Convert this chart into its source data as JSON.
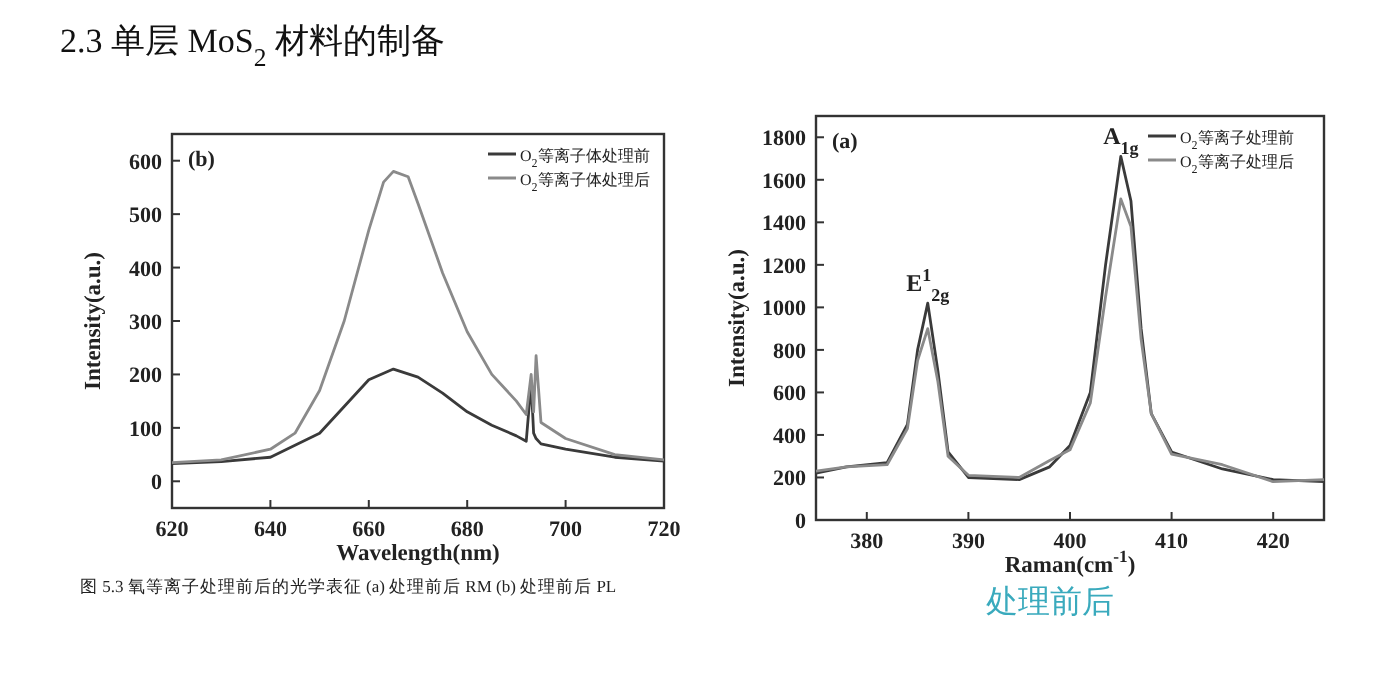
{
  "chart_data": [
    {
      "type": "line",
      "title": "(b)",
      "xlabel": "Wavelength(nm)",
      "ylabel": "Intensity(a.u.)",
      "xlim": [
        620,
        720
      ],
      "ylim": [
        -50,
        650
      ],
      "xticks": [
        620,
        640,
        660,
        680,
        700,
        720
      ],
      "yticks": [
        0,
        100,
        200,
        300,
        400,
        500,
        600
      ],
      "legend": "top right",
      "grid": false,
      "annotations": [
        "2.3  单层 MoS$_{2}$ 材料的制备",
        "图 5.3  氧等离子处理前后的光学表征  (a)  处理前后 RM (b)  处理前后 PL"
      ],
      "series": [
        {
          "name": "O$_{2}$等离子体处理前",
          "color": "#3a3a3a",
          "x": [
            620,
            630,
            640,
            650,
            655,
            660,
            665,
            670,
            675,
            680,
            685,
            690,
            692,
            693,
            693.5,
            694,
            695,
            700,
            710,
            720
          ],
          "values": [
            33,
            37,
            45,
            90,
            140,
            190,
            210,
            195,
            165,
            130,
            105,
            85,
            75,
            185,
            90,
            80,
            70,
            60,
            45,
            38
          ]
        },
        {
          "name": "O$_{2}$等离子体处理后",
          "color": "#8a8a8a",
          "x": [
            620,
            630,
            640,
            645,
            650,
            655,
            660,
            663,
            665,
            668,
            670,
            675,
            680,
            685,
            690,
            692,
            693,
            693.5,
            694,
            695,
            700,
            710,
            720
          ],
          "values": [
            35,
            40,
            60,
            90,
            170,
            300,
            470,
            560,
            580,
            570,
            520,
            390,
            280,
            200,
            150,
            125,
            200,
            130,
            235,
            110,
            80,
            50,
            40
          ]
        }
      ]
    },
    {
      "type": "line",
      "title": "(a)",
      "xlabel": "Raman(cm$^{-1}$)",
      "ylabel": "Intensity(a.u.)",
      "xlim": [
        375,
        425
      ],
      "ylim": [
        0,
        1900
      ],
      "xticks": [
        380,
        390,
        400,
        410,
        420
      ],
      "yticks": [
        0,
        200,
        400,
        600,
        800,
        1000,
        1200,
        1400,
        1600,
        1800
      ],
      "legend": "top right",
      "grid": false,
      "annotations": [
        {
          "text": "E$^{1}$$_{2g}$",
          "x": 386,
          "y": 1020
        },
        {
          "text": "A$_{1g}$",
          "x": 405,
          "y": 1710
        },
        "处理前后"
      ],
      "series": [
        {
          "name": "O$_{2}$等离子处理前",
          "color": "#3a3a3a",
          "x": [
            375,
            378,
            382,
            384,
            385,
            386,
            387,
            388,
            390,
            395,
            398,
            400,
            402,
            403.5,
            405,
            406,
            407,
            408,
            410,
            415,
            420,
            425
          ],
          "values": [
            220,
            250,
            270,
            450,
            800,
            1020,
            700,
            320,
            200,
            190,
            250,
            350,
            600,
            1200,
            1710,
            1500,
            900,
            500,
            320,
            240,
            190,
            180
          ]
        },
        {
          "name": "O$_{2}$等离子处理后",
          "color": "#8a8a8a",
          "x": [
            375,
            378,
            382,
            384,
            385,
            386,
            387,
            388,
            390,
            395,
            398,
            400,
            402,
            403.5,
            405,
            406,
            407,
            408,
            410,
            415,
            420,
            425
          ],
          "values": [
            230,
            250,
            260,
            430,
            750,
            900,
            650,
            300,
            210,
            200,
            280,
            330,
            550,
            1050,
            1510,
            1380,
            850,
            500,
            310,
            260,
            180,
            190
          ]
        }
      ]
    }
  ]
}
